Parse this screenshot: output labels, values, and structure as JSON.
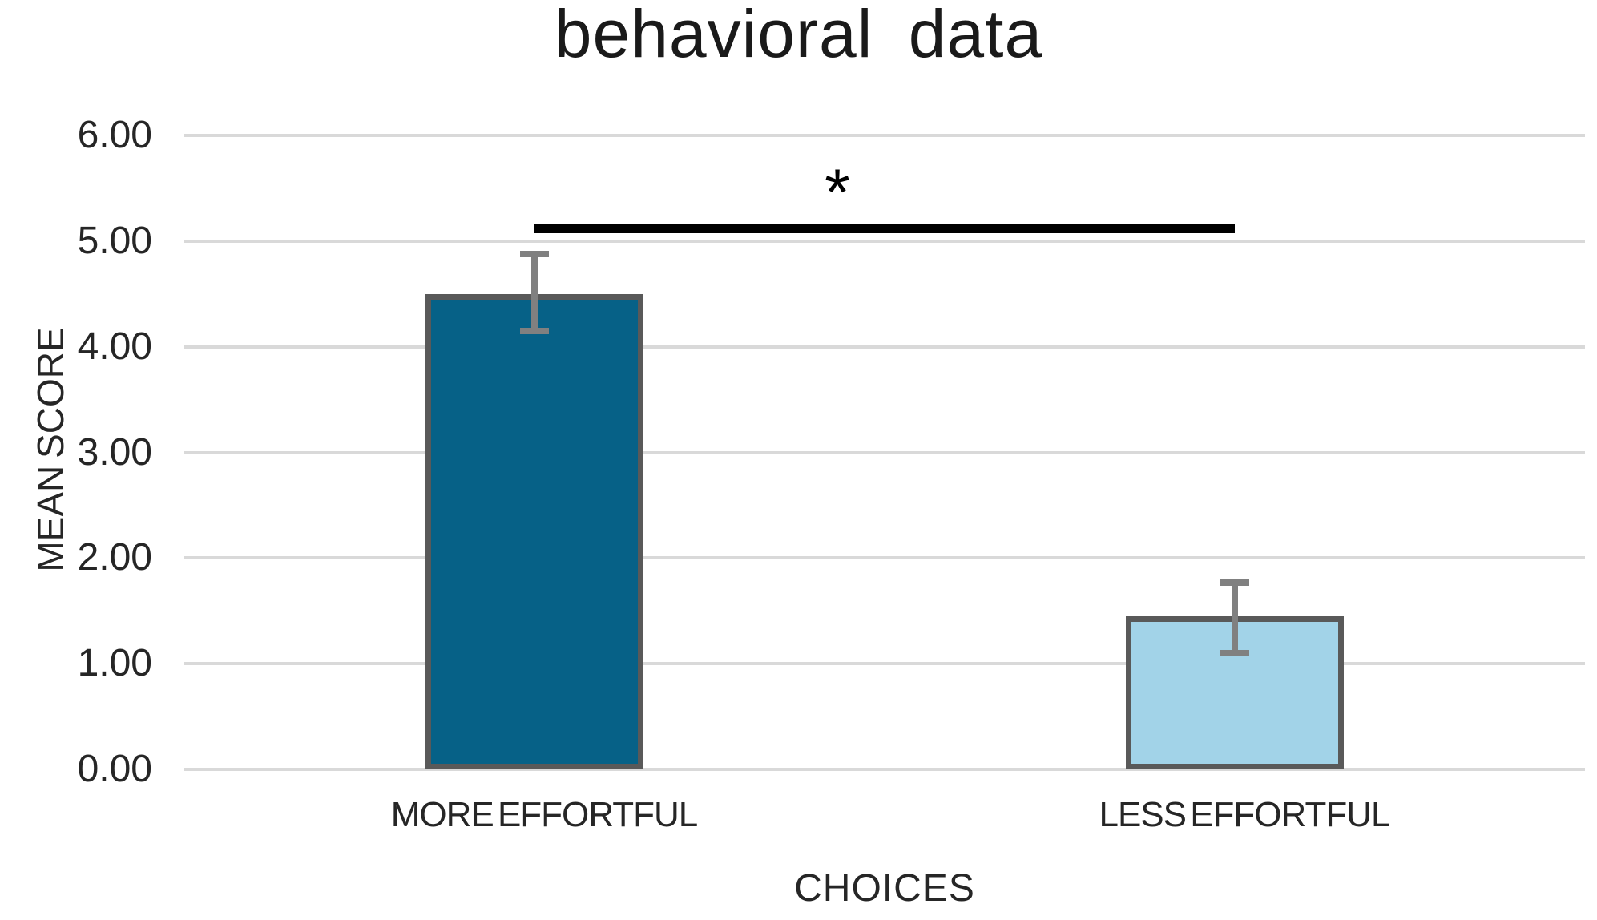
{
  "chart_data": {
    "type": "bar",
    "title": "behavioral data",
    "xlabel": "CHOICES",
    "ylabel": "MEAN SCORE",
    "categories": [
      "MORE EFFORTFUL",
      "LESS EFFORTFUL"
    ],
    "values": [
      4.5,
      1.45
    ],
    "error_upper": [
      4.88,
      1.77
    ],
    "error_lower": [
      4.15,
      1.1
    ],
    "ylim": [
      0,
      6
    ],
    "yticks": [
      0,
      1,
      2,
      3,
      4,
      5,
      6
    ],
    "ytick_labels": [
      "0.00",
      "1.00",
      "2.00",
      "3.00",
      "4.00",
      "5.00",
      "6.00"
    ],
    "grid": true,
    "legend_position": "none",
    "significance": {
      "label": "*",
      "level": 5.12,
      "between": [
        "MORE EFFORTFUL",
        "LESS EFFORTFUL"
      ]
    },
    "colors": {
      "bar_fills": [
        "#066187",
        "#a2d3e8"
      ],
      "bar_border": "#595959",
      "error_bar": "#808080",
      "gridline": "#d9d9d9",
      "axis_text": "#262626",
      "title_text": "#1a1a1a",
      "significance_line": "#000000"
    }
  }
}
